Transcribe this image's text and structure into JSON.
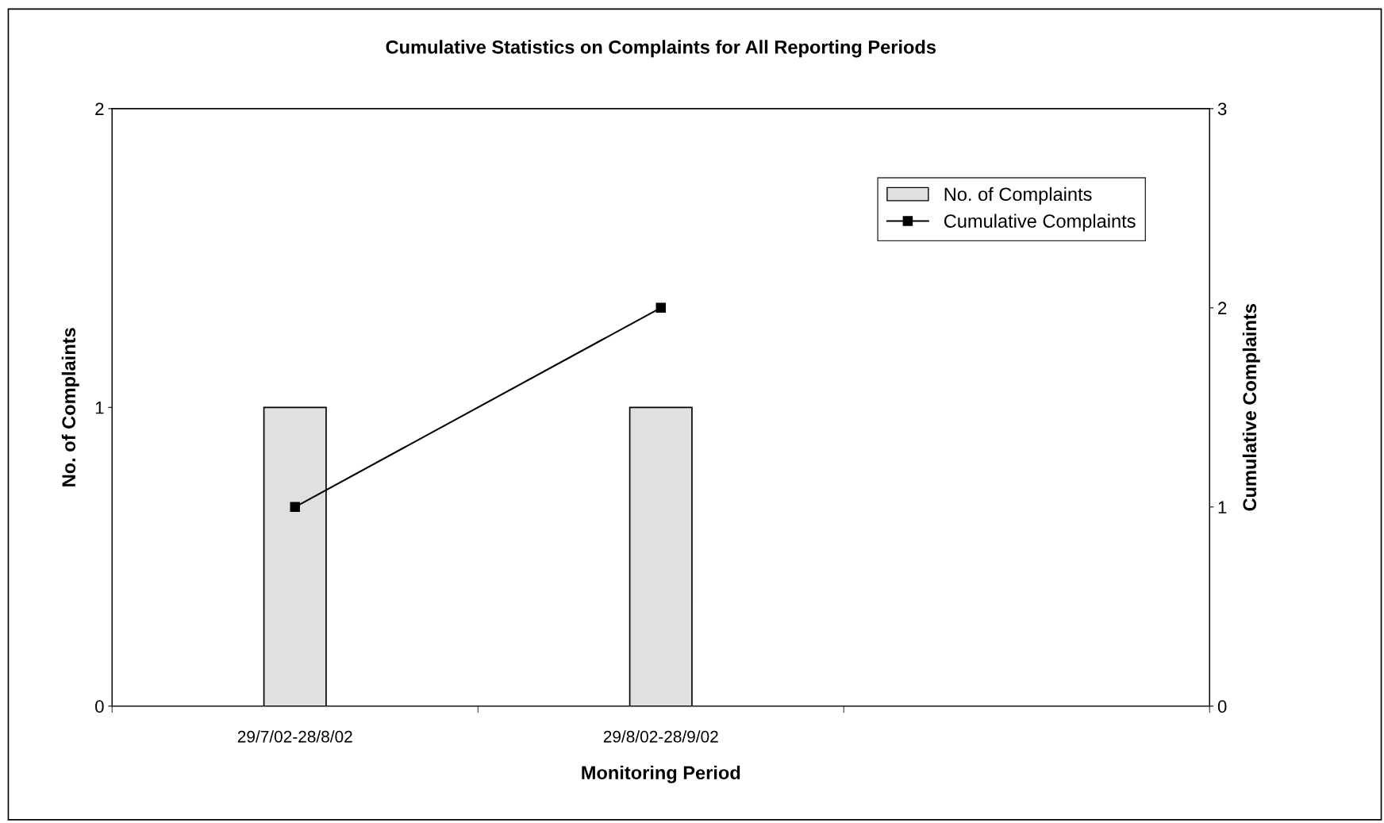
{
  "chart_data": {
    "type": "bar",
    "title": "Cumulative Statistics on Complaints for All Reporting Periods",
    "xlabel": "Monitoring Period",
    "ylabel": "No. of Complaints",
    "y2label": "Cumulative Complaints",
    "categories": [
      "29/7/02-28/8/02",
      "29/8/02-28/9/02",
      null
    ],
    "series": [
      {
        "name": "No. of Complaints",
        "color": "#e0e0e0",
        "values": [
          1,
          1,
          null
        ]
      },
      {
        "name": "Cumulative Complaints",
        "type": "line",
        "axis": "y2",
        "color": "#000000",
        "marker": "square",
        "line_style": "solid",
        "values": [
          1,
          2,
          null
        ]
      }
    ],
    "ylim": [
      0,
      2
    ],
    "yticks": [
      0,
      1,
      2
    ],
    "y2lim": [
      0,
      3
    ],
    "y2ticks": [
      0,
      1,
      2,
      3
    ],
    "grid": false,
    "legend": "top right"
  }
}
